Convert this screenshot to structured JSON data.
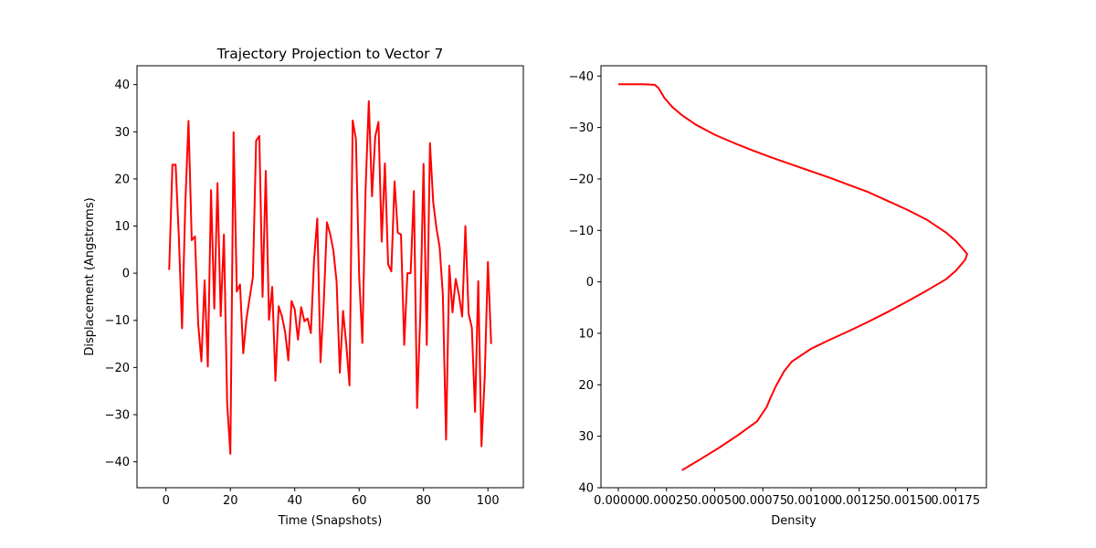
{
  "chart_data": [
    {
      "type": "line",
      "title": "Trajectory Projection to Vector 7",
      "xlabel": "Time (Snapshots)",
      "ylabel": "Displacement (Angstroms)",
      "xlim": [
        -9,
        111
      ],
      "ylim": [
        -45.5,
        44
      ],
      "xticks": [
        0,
        20,
        40,
        60,
        80,
        100
      ],
      "yticks": [
        -40,
        -30,
        -20,
        -10,
        0,
        10,
        20,
        30,
        40
      ],
      "color": "#ff0000",
      "series": [
        {
          "x": [
            1,
            2,
            3,
            4,
            5,
            6,
            7,
            8,
            9,
            10,
            11,
            12,
            13,
            14,
            15,
            16,
            17,
            18,
            19,
            20,
            21,
            22,
            23,
            24,
            25,
            26,
            27,
            28,
            29,
            30,
            31,
            32,
            33,
            34,
            35,
            36,
            37,
            38,
            39,
            40,
            41,
            42,
            43,
            44,
            45,
            46,
            47,
            48,
            49,
            50,
            51,
            52,
            53,
            54,
            55,
            56,
            57,
            58,
            59,
            60,
            61,
            62,
            63,
            64,
            65,
            66,
            67,
            68,
            69,
            70,
            71,
            72,
            73,
            74,
            75,
            76,
            77,
            78,
            79,
            80,
            81,
            82,
            83,
            84,
            85,
            86,
            87,
            88,
            89,
            90,
            91,
            92,
            93,
            94,
            95,
            96,
            97,
            98,
            99,
            100,
            101
          ],
          "y": [
            0.7,
            23,
            23,
            7.7,
            -11.7,
            14.6,
            32.3,
            7,
            7.8,
            -10.7,
            -18.7,
            -1.5,
            -19.8,
            17.6,
            -7.5,
            19.1,
            -9.1,
            8.2,
            -27.5,
            -38.3,
            29.9,
            -3.9,
            -2.4,
            -17,
            -9.7,
            -5.2,
            -0.8,
            28.1,
            29.1,
            -5,
            21.7,
            -9.9,
            -2.9,
            -22.8,
            -7,
            -9.1,
            -12.4,
            -18.5,
            -5.9,
            -7.7,
            -14.1,
            -7.2,
            -10.2,
            -9.6,
            -12.7,
            2.8,
            11.6,
            -18.9,
            -6.4,
            10.8,
            8.3,
            4.8,
            -1.8,
            -21.1,
            -8,
            -15.1,
            -23.8,
            32.4,
            28.4,
            -0.5,
            -14.8,
            17.8,
            36.5,
            16.3,
            29,
            32.1,
            6.7,
            23.3,
            1.9,
            0.4,
            19.5,
            8.6,
            8.2,
            -15.2,
            0,
            0,
            17.4,
            -28.6,
            -8.7,
            23.2,
            -15.2,
            27.6,
            15.1,
            9.6,
            5.5,
            -4.6,
            -35.3,
            1.6,
            -8.3,
            -1.2,
            -4.6,
            -9.2,
            10,
            -8.6,
            -11.5,
            -29.4,
            -1.7,
            -36.7,
            -22.1,
            2.4,
            -15
          ]
        }
      ]
    },
    {
      "type": "line",
      "title": "",
      "xlabel": "Density",
      "ylabel": "",
      "xlim": [
        -9e-05,
        0.00191
      ],
      "ylim": [
        40,
        -42
      ],
      "y_inverted": true,
      "xticks": [
        0,
        0.00025,
        0.0005,
        0.00075,
        0.001,
        0.00125,
        0.0015,
        0.00175
      ],
      "xtick_labels": [
        "0.00000",
        "0.00025",
        "0.00050",
        "0.00075",
        "0.00100",
        "0.00125",
        "0.00150",
        "0.00175"
      ],
      "yticks": [
        -40,
        -30,
        -20,
        -10,
        0,
        10,
        20,
        30,
        40
      ],
      "ytick_labels": [
        "−40",
        "−30",
        "−20",
        "−10",
        "0",
        "10",
        "20",
        "30",
        "40"
      ],
      "color": "#ff0000",
      "series": [
        {
          "x": [
            0,
            0.00013,
            0.00019,
            0.00021,
            0.00024,
            0.00028,
            0.00033,
            0.0004,
            0.0005,
            0.0006,
            0.0007,
            0.0008,
            0.0009,
            0.001,
            0.0011,
            0.0012,
            0.0013,
            0.0014,
            0.0015,
            0.0016,
            0.0017,
            0.00175,
            0.0018,
            0.00181,
            0.0018,
            0.00175,
            0.0017,
            0.0016,
            0.0015,
            0.0014,
            0.0013,
            0.0012,
            0.0011,
            0.001,
            0.0009,
            0.00086,
            0.00082,
            0.00079,
            0.00077,
            0.00072,
            0.00062,
            0.00052,
            0.00042,
            0.00033
          ],
          "y": [
            -38.4,
            -38.4,
            -38.3,
            -37.6,
            -35.7,
            -34,
            -32.4,
            -30.6,
            -28.6,
            -27,
            -25.5,
            -24.1,
            -22.8,
            -21.5,
            -20.2,
            -18.8,
            -17.4,
            -15.7,
            -14,
            -12.1,
            -9.6,
            -8,
            -5.9,
            -5.4,
            -4.3,
            -2.1,
            -0.5,
            1.7,
            3.8,
            5.8,
            7.7,
            9.5,
            11.2,
            13,
            15.5,
            17.4,
            20.1,
            22.5,
            24.3,
            27.1,
            29.8,
            32.3,
            34.6,
            36.6
          ]
        }
      ]
    }
  ]
}
